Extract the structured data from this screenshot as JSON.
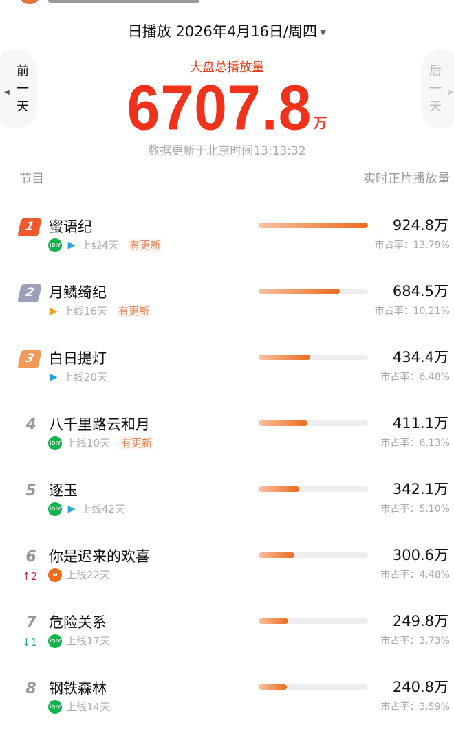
{
  "header": {
    "date_label": "日播放 2026年4月16日/周四",
    "prev_day": [
      "前",
      "一",
      "天"
    ],
    "next_day": [
      "后",
      "一",
      "天"
    ]
  },
  "summary": {
    "label": "大盘总播放量",
    "total": "6707.8",
    "unit": "万",
    "updated": "数据更新于北京时间13:13:32"
  },
  "columns": {
    "program": "节目",
    "plays": "实时正片播放量"
  },
  "colors": {
    "accent": "#f0321a",
    "bar": "#ee6a1c",
    "rank1": "#ee5a2e",
    "rank2": "#9aa0b8",
    "rank3": "#f09a5a",
    "up": "#c8283c",
    "down": "#22b07a"
  },
  "rows": [
    {
      "rank": "1",
      "title": "蜜语纪",
      "platforms": [
        "iqiyi",
        "tencent"
      ],
      "online": "上线4天",
      "update": "有更新",
      "plays": "924.8万",
      "value": 924.8,
      "share": "市占率：13.79%",
      "change": ""
    },
    {
      "rank": "2",
      "title": "月鳞绮纪",
      "platforms": [
        "youku"
      ],
      "online": "上线16天",
      "update": "有更新",
      "plays": "684.5万",
      "value": 684.5,
      "share": "市占率：10.21%",
      "change": ""
    },
    {
      "rank": "3",
      "title": "白日提灯",
      "platforms": [
        "tencent"
      ],
      "online": "上线20天",
      "update": "",
      "plays": "434.4万",
      "value": 434.4,
      "share": "市占率：6.48%",
      "change": ""
    },
    {
      "rank": "4",
      "title": "八千里路云和月",
      "platforms": [
        "iqiyi"
      ],
      "online": "上线10天",
      "update": "有更新",
      "plays": "411.1万",
      "value": 411.1,
      "share": "市占率：6.13%",
      "change": ""
    },
    {
      "rank": "5",
      "title": "逐玉",
      "platforms": [
        "iqiyi",
        "tencent"
      ],
      "online": "上线42天",
      "update": "",
      "plays": "342.1万",
      "value": 342.1,
      "share": "市占率：5.10%",
      "change": ""
    },
    {
      "rank": "6",
      "title": "你是迟来的欢喜",
      "platforms": [
        "mango"
      ],
      "online": "上线22天",
      "update": "",
      "plays": "300.6万",
      "value": 300.6,
      "share": "市占率：4.48%",
      "change": "↑2",
      "change_dir": "up"
    },
    {
      "rank": "7",
      "title": "危险关系",
      "platforms": [
        "iqiyi"
      ],
      "online": "上线17天",
      "update": "",
      "plays": "249.8万",
      "value": 249.8,
      "share": "市占率：3.73%",
      "change": "↓1",
      "change_dir": "down"
    },
    {
      "rank": "8",
      "title": "钢铁森林",
      "platforms": [
        "iqiyi"
      ],
      "online": "上线14天",
      "update": "",
      "plays": "240.8万",
      "value": 240.8,
      "share": "市占率：3.59%",
      "change": ""
    }
  ]
}
